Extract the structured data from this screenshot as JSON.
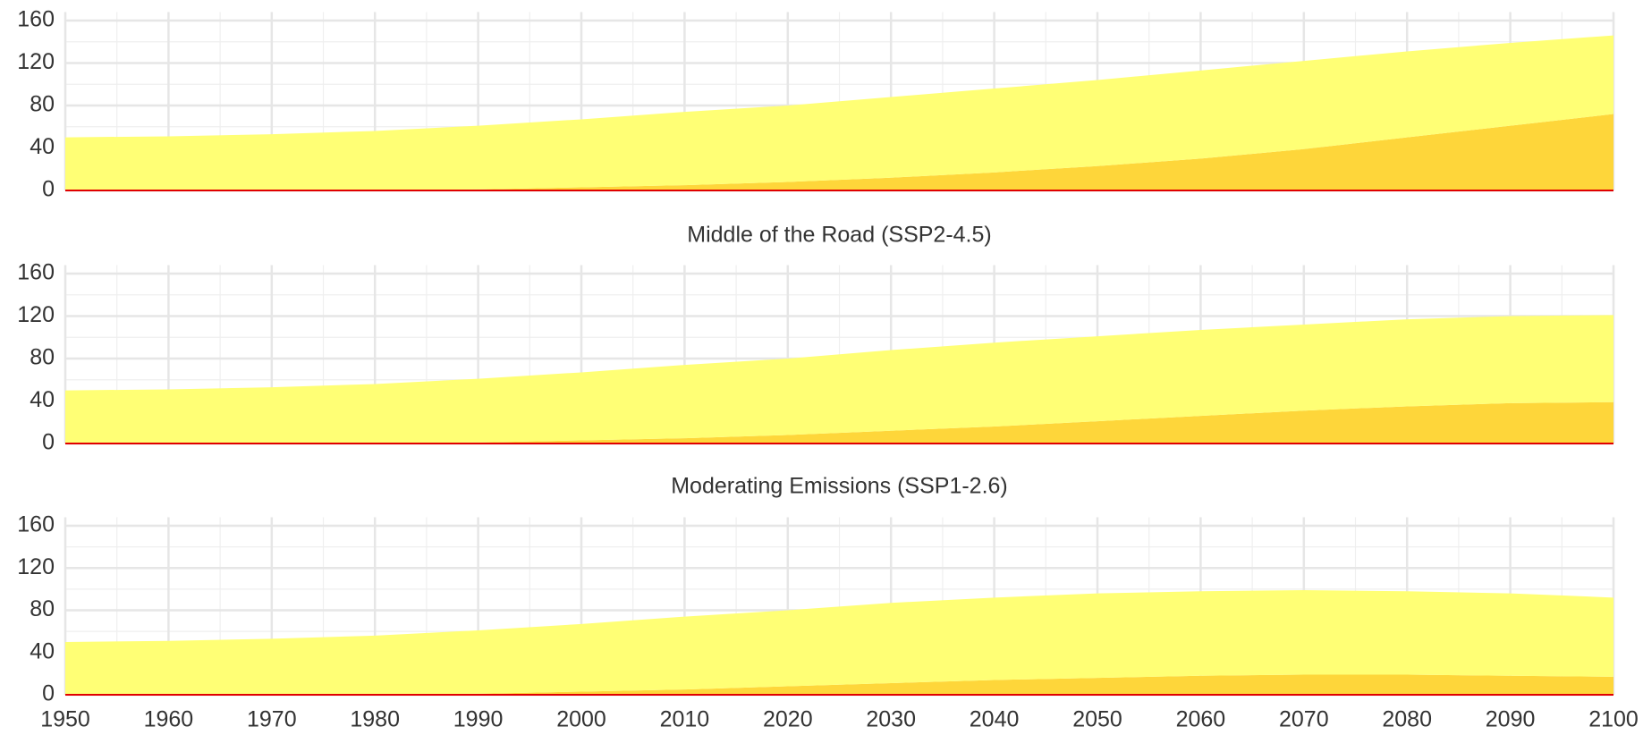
{
  "chart_data": [
    {
      "type": "area",
      "stacked": true,
      "x": [
        1950,
        1960,
        1970,
        1980,
        1990,
        2000,
        2010,
        2020,
        2030,
        2040,
        2050,
        2060,
        2070,
        2080,
        2090,
        2100
      ],
      "series": [
        {
          "color": "#fed63a",
          "values": [
            0,
            0,
            0,
            0.5,
            1,
            3,
            5,
            8,
            12,
            17,
            23,
            30,
            39,
            50,
            61,
            72
          ]
        },
        {
          "color": "#ffff75",
          "values": [
            50,
            51,
            53,
            55.5,
            60,
            64,
            69,
            72,
            76,
            79,
            81,
            83,
            83,
            81,
            78,
            74
          ]
        }
      ],
      "xlim": [
        1950,
        2100
      ],
      "xticks": [
        1950,
        1960,
        1970,
        1980,
        1990,
        2000,
        2010,
        2020,
        2030,
        2040,
        2050,
        2060,
        2070,
        2080,
        2090,
        2100
      ],
      "ylim": [
        0,
        168
      ],
      "yticks": [
        0,
        40,
        80,
        120,
        160
      ],
      "grid": true
    },
    {
      "type": "area",
      "stacked": true,
      "title": "Middle of the Road (SSP2-4.5)",
      "x": [
        1950,
        1960,
        1970,
        1980,
        1990,
        2000,
        2010,
        2020,
        2030,
        2040,
        2050,
        2060,
        2070,
        2080,
        2090,
        2100
      ],
      "series": [
        {
          "color": "#fed63a",
          "values": [
            0,
            0,
            0,
            0.5,
            1,
            3,
            5,
            8,
            12,
            16,
            21,
            26,
            31,
            35,
            38,
            39
          ]
        },
        {
          "color": "#ffff75",
          "values": [
            50,
            51,
            53,
            55.5,
            60,
            64,
            69,
            72,
            76,
            79,
            80,
            81,
            81,
            82,
            82,
            82
          ]
        }
      ],
      "xlim": [
        1950,
        2100
      ],
      "xticks": [
        1950,
        1960,
        1970,
        1980,
        1990,
        2000,
        2010,
        2020,
        2030,
        2040,
        2050,
        2060,
        2070,
        2080,
        2090,
        2100
      ],
      "ylim": [
        0,
        168
      ],
      "yticks": [
        0,
        40,
        80,
        120,
        160
      ],
      "grid": true
    },
    {
      "type": "area",
      "stacked": true,
      "title": "Moderating Emissions (SSP1-2.6)",
      "x": [
        1950,
        1960,
        1970,
        1980,
        1990,
        2000,
        2010,
        2020,
        2030,
        2040,
        2050,
        2060,
        2070,
        2080,
        2090,
        2100
      ],
      "series": [
        {
          "color": "#fed63a",
          "values": [
            0,
            0,
            0,
            0.5,
            1,
            3,
            5,
            8,
            11,
            14,
            16,
            18,
            19,
            19,
            18,
            17
          ]
        },
        {
          "color": "#ffff75",
          "values": [
            50,
            51,
            53,
            55.5,
            60,
            64,
            69,
            72,
            76,
            78,
            80,
            80,
            80,
            79,
            78,
            75
          ]
        }
      ],
      "xlim": [
        1950,
        2100
      ],
      "xticks": [
        1950,
        1960,
        1970,
        1980,
        1990,
        2000,
        2010,
        2020,
        2030,
        2040,
        2050,
        2060,
        2070,
        2080,
        2090,
        2100
      ],
      "ylim": [
        0,
        168
      ],
      "yticks": [
        0,
        40,
        80,
        120,
        160
      ],
      "grid": true
    }
  ]
}
